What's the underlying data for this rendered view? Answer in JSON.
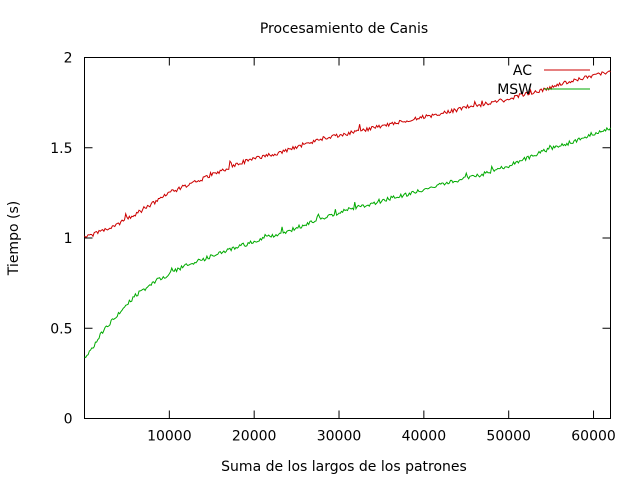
{
  "chart_data": {
    "type": "line",
    "title": "Procesamiento de Canis",
    "xlabel": "Suma de los largos de los patrones",
    "ylabel": "Tiempo (s)",
    "xlim": [
      0,
      62000
    ],
    "ylim": [
      0,
      2
    ],
    "xticks": [
      10000,
      20000,
      30000,
      40000,
      50000,
      60000
    ],
    "xtick_labels": [
      "10000",
      "20000",
      "30000",
      "40000",
      "50000",
      "60000"
    ],
    "yticks": [
      0,
      0.5,
      1,
      1.5,
      2
    ],
    "ytick_labels": [
      "0",
      "0.5",
      "1",
      "1.5",
      "2"
    ],
    "grid": false,
    "legend_position": "top-right",
    "series": [
      {
        "name": "AC",
        "color": "#cc0000",
        "x": [
          0,
          2000,
          4000,
          6000,
          8000,
          10000,
          12000,
          14000,
          16000,
          18000,
          20000,
          22000,
          24000,
          26000,
          28000,
          30000,
          32000,
          34000,
          36000,
          38000,
          40000,
          42000,
          44000,
          46000,
          48000,
          50000,
          52000,
          54000,
          56000,
          58000,
          60000,
          62000
        ],
        "y": [
          1.0,
          1.04,
          1.08,
          1.13,
          1.19,
          1.25,
          1.29,
          1.33,
          1.37,
          1.41,
          1.44,
          1.46,
          1.49,
          1.52,
          1.55,
          1.57,
          1.59,
          1.61,
          1.63,
          1.65,
          1.67,
          1.69,
          1.71,
          1.73,
          1.75,
          1.77,
          1.8,
          1.82,
          1.85,
          1.88,
          1.9,
          1.92
        ]
      },
      {
        "name": "MSW",
        "color": "#00aa00",
        "x": [
          0,
          1000,
          2000,
          3000,
          4000,
          6000,
          8000,
          10000,
          12000,
          14000,
          16000,
          18000,
          20000,
          22000,
          24000,
          26000,
          28000,
          30000,
          32000,
          34000,
          36000,
          38000,
          40000,
          42000,
          44000,
          46000,
          48000,
          50000,
          52000,
          54000,
          56000,
          58000,
          60000,
          62000
        ],
        "y": [
          0.33,
          0.39,
          0.47,
          0.53,
          0.58,
          0.68,
          0.75,
          0.8,
          0.85,
          0.88,
          0.92,
          0.95,
          0.98,
          1.01,
          1.04,
          1.07,
          1.11,
          1.14,
          1.17,
          1.19,
          1.22,
          1.24,
          1.27,
          1.3,
          1.32,
          1.34,
          1.37,
          1.4,
          1.44,
          1.48,
          1.51,
          1.54,
          1.58,
          1.61
        ]
      }
    ]
  }
}
